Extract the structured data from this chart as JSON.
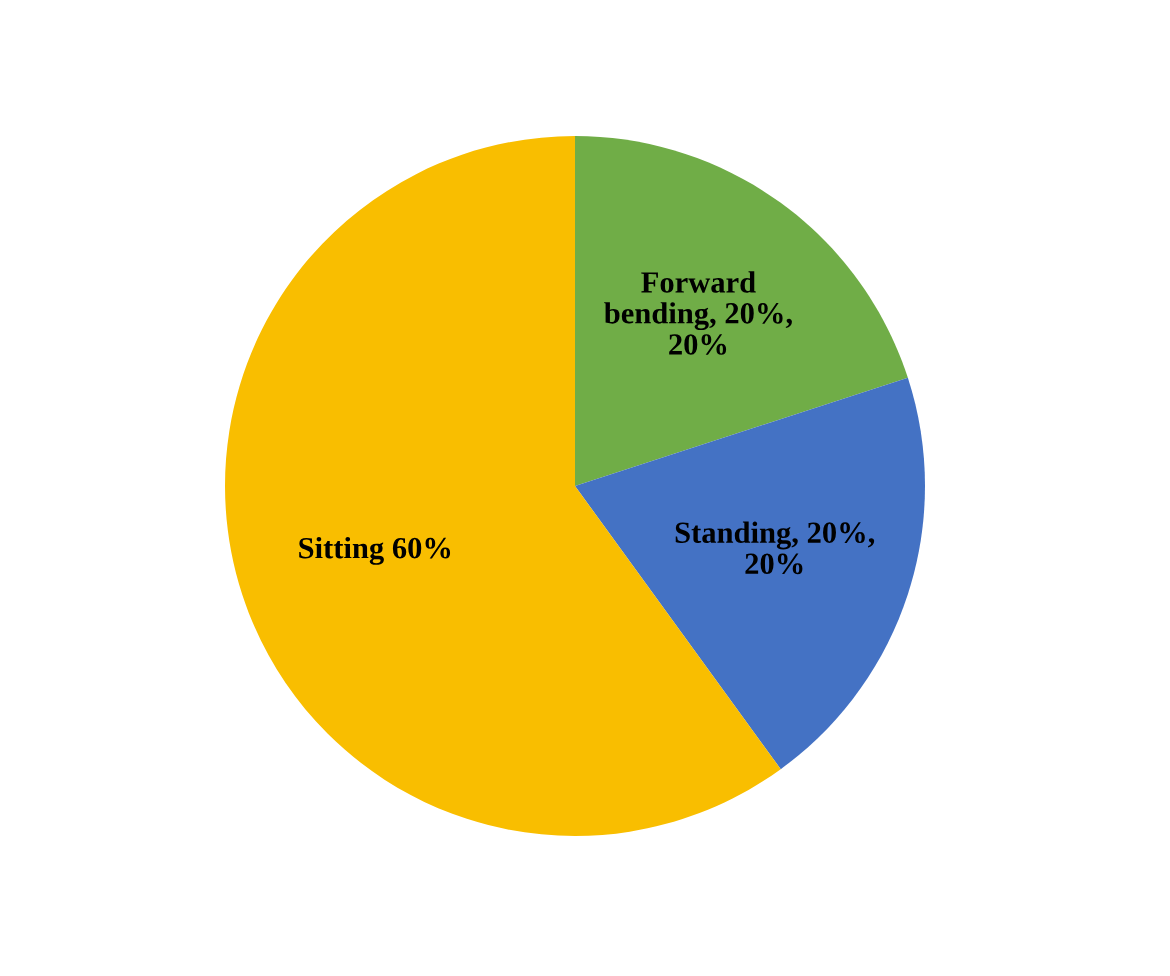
{
  "chart_data": {
    "type": "pie",
    "categories": [
      "Forward bending, 20%, 20%",
      "Standing, 20%, 20%",
      "Sitting 60%"
    ],
    "values": [
      20,
      20,
      60
    ],
    "colors": [
      "#70ad47",
      "#4472c4",
      "#f9be00"
    ],
    "legend": false
  }
}
